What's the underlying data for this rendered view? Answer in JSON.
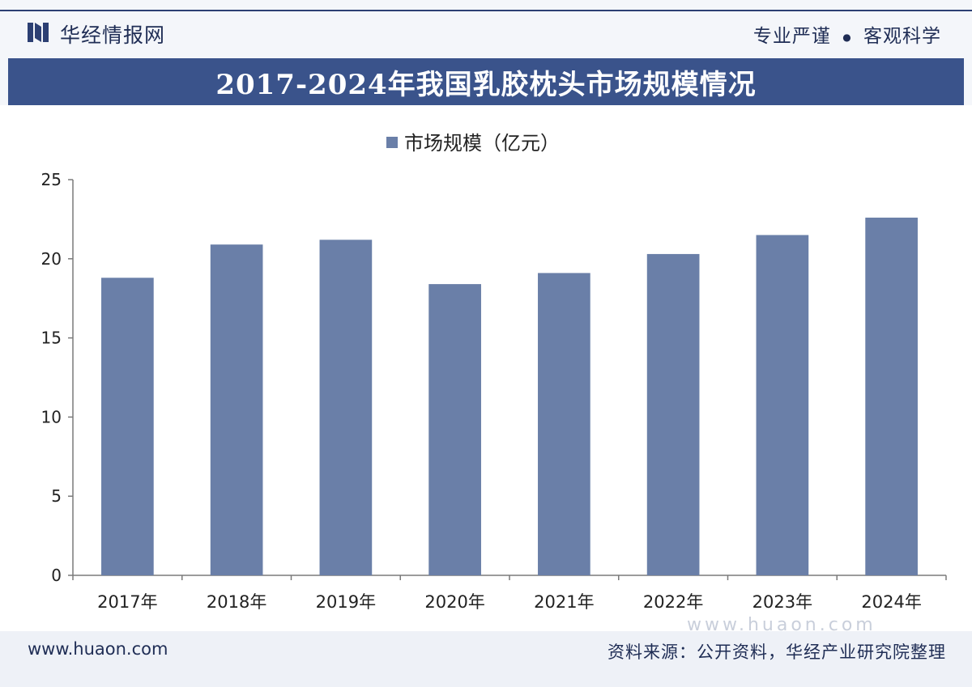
{
  "header": {
    "brand": "华经情报网",
    "slogan_left": "专业严谨",
    "slogan_dot": "●",
    "slogan_right": "客观科学"
  },
  "title": "2017-2024年我国乳胶枕头市场规模情况",
  "colors": {
    "bar": "#6a7fa8",
    "title_bg": "#3a538b",
    "axis": "#7a7a7a"
  },
  "chart_data": {
    "type": "bar",
    "title": "2017-2024年我国乳胶枕头市场规模情况",
    "categories": [
      "2017年",
      "2018年",
      "2019年",
      "2020年",
      "2021年",
      "2022年",
      "2023年",
      "2024年"
    ],
    "series": [
      {
        "name": "市场规模（亿元）",
        "values": [
          18.8,
          20.9,
          21.2,
          18.4,
          19.1,
          20.3,
          21.5,
          22.6
        ]
      }
    ],
    "xlabel": "",
    "ylabel": "",
    "ylim": [
      0,
      25
    ],
    "yticks": [
      0,
      5,
      10,
      15,
      20,
      25
    ],
    "legend": "top-center",
    "grid": false
  },
  "watermark": {
    "site": "www.huaon.com"
  },
  "footer": {
    "site": "www.huaon.com",
    "source": "资料来源：公开资料，华经产业研究院整理"
  }
}
